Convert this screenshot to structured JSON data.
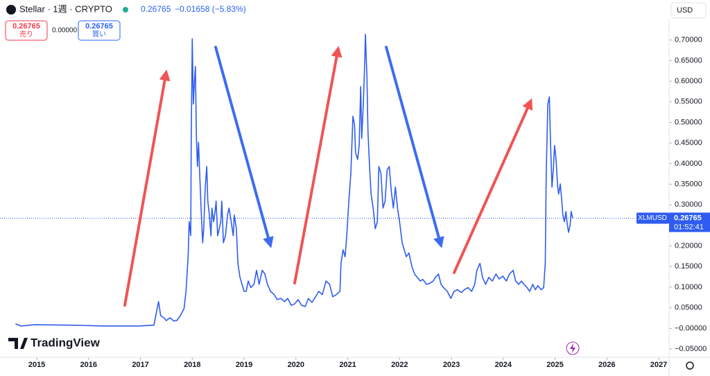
{
  "header": {
    "symbol": "Stellar · 1週 · CRYPTO",
    "change": "−0.01658 (−5.83%)",
    "sell_label": "売り",
    "spread": "0.00000",
    "buy_label": "買い",
    "currency": "USD",
    "ticker": "XLMUSD",
    "countdown": "01:52:41",
    "brand": "TradingView"
  },
  "chart_data": {
    "type": "line",
    "color": "#2e5cf0",
    "grid": false,
    "last_price": 0.26765,
    "xlim": [
      2014.29,
      2027.2
    ],
    "xticks": [
      2015,
      2016,
      2017,
      2018,
      2019,
      2020,
      2021,
      2022,
      2023,
      2024,
      2025,
      2026,
      2027
    ],
    "ylim": [
      -0.07,
      0.75
    ],
    "yticks": [
      {
        "value": -0.05,
        "label": "−0.05000"
      },
      {
        "value": 0,
        "label": "−0.00000"
      },
      {
        "value": 0.05,
        "label": "0.05000"
      },
      {
        "value": 0.1,
        "label": "0.10000"
      },
      {
        "value": 0.15,
        "label": "0.15000"
      },
      {
        "value": 0.2,
        "label": "0.20000"
      },
      {
        "value": 0.25,
        "label": "0.25000"
      },
      {
        "value": 0.3,
        "label": "0.30000"
      },
      {
        "value": 0.35,
        "label": "0.35000"
      },
      {
        "value": 0.4,
        "label": "0.40000"
      },
      {
        "value": 0.45,
        "label": "0.45000"
      },
      {
        "value": 0.5,
        "label": "0.50000"
      },
      {
        "value": 0.55,
        "label": "0.55000"
      },
      {
        "value": 0.6,
        "label": "0.60000"
      },
      {
        "value": 0.65,
        "label": "0.65000"
      },
      {
        "value": 0.7,
        "label": "0.70000"
      }
    ],
    "x": [
      2014.59,
      2014.69,
      2014.96,
      2015.63,
      2016.3,
      2016.97,
      2017.26,
      2017.31,
      2017.35,
      2017.39,
      2017.45,
      2017.5,
      2017.57,
      2017.64,
      2017.7,
      2017.77,
      2017.84,
      2017.88,
      2017.92,
      2017.94,
      2017.97,
      2017.98,
      2018.0,
      2018.02,
      2018.04,
      2018.06,
      2018.08,
      2018.1,
      2018.12,
      2018.14,
      2018.17,
      2018.2,
      2018.22,
      2018.25,
      2018.28,
      2018.3,
      2018.33,
      2018.36,
      2018.38,
      2018.41,
      2018.44,
      2018.46,
      2018.49,
      2018.52,
      2018.55,
      2018.57,
      2018.6,
      2018.64,
      2018.68,
      2018.71,
      2018.75,
      2018.79,
      2018.81,
      2018.85,
      2018.88,
      2018.92,
      2018.96,
      2019.0,
      2019.04,
      2019.08,
      2019.13,
      2019.19,
      2019.24,
      2019.29,
      2019.35,
      2019.4,
      2019.45,
      2019.51,
      2019.58,
      2019.64,
      2019.71,
      2019.78,
      2019.84,
      2019.91,
      2019.98,
      2020.04,
      2020.11,
      2020.18,
      2020.24,
      2020.31,
      2020.38,
      2020.44,
      2020.51,
      2020.58,
      2020.65,
      2020.71,
      2020.78,
      2020.85,
      2020.87,
      2020.91,
      2020.95,
      2020.98,
      2021.02,
      2021.06,
      2021.1,
      2021.13,
      2021.15,
      2021.19,
      2021.22,
      2021.25,
      2021.27,
      2021.3,
      2021.33,
      2021.34,
      2021.37,
      2021.39,
      2021.42,
      2021.45,
      2021.49,
      2021.53,
      2021.57,
      2021.6,
      2021.64,
      2021.68,
      2021.72,
      2021.76,
      2021.8,
      2021.84,
      2021.88,
      2021.92,
      2021.96,
      2022.0,
      2022.05,
      2022.09,
      2022.13,
      2022.18,
      2022.24,
      2022.29,
      2022.34,
      2022.4,
      2022.45,
      2022.52,
      2022.59,
      2022.65,
      2022.69,
      2022.75,
      2022.8,
      2022.85,
      2022.92,
      2022.99,
      2023.05,
      2023.12,
      2023.19,
      2023.25,
      2023.32,
      2023.39,
      2023.45,
      2023.49,
      2023.55,
      2023.6,
      2023.66,
      2023.72,
      2023.79,
      2023.86,
      2023.92,
      2023.99,
      2024.06,
      2024.12,
      2024.19,
      2024.24,
      2024.3,
      2024.35,
      2024.4,
      2024.46,
      2024.51,
      2024.57,
      2024.62,
      2024.67,
      2024.73,
      2024.78,
      2024.81,
      2024.83,
      2024.86,
      2024.89,
      2024.91,
      2024.94,
      2024.97,
      2024.99,
      2025.02,
      2025.05,
      2025.07,
      2025.1,
      2025.13,
      2025.15,
      2025.18,
      2025.21,
      2025.23,
      2025.26,
      2025.29,
      2025.31,
      2025.34
    ],
    "values": [
      0.011,
      0.006,
      0.009,
      0.008,
      0.006,
      0.006,
      0.008,
      0.04,
      0.065,
      0.031,
      0.026,
      0.019,
      0.026,
      0.018,
      0.019,
      0.031,
      0.048,
      0.09,
      0.174,
      0.259,
      0.225,
      0.461,
      0.703,
      0.545,
      0.596,
      0.636,
      0.461,
      0.393,
      0.452,
      0.385,
      0.292,
      0.208,
      0.242,
      0.343,
      0.393,
      0.309,
      0.275,
      0.225,
      0.292,
      0.259,
      0.284,
      0.309,
      0.225,
      0.242,
      0.259,
      0.309,
      0.208,
      0.225,
      0.275,
      0.292,
      0.259,
      0.225,
      0.275,
      0.242,
      0.158,
      0.124,
      0.107,
      0.09,
      0.09,
      0.115,
      0.099,
      0.107,
      0.141,
      0.107,
      0.141,
      0.132,
      0.107,
      0.09,
      0.082,
      0.07,
      0.073,
      0.065,
      0.073,
      0.056,
      0.06,
      0.07,
      0.056,
      0.053,
      0.073,
      0.063,
      0.077,
      0.09,
      0.082,
      0.115,
      0.107,
      0.077,
      0.082,
      0.09,
      0.158,
      0.191,
      0.174,
      0.225,
      0.309,
      0.376,
      0.515,
      0.494,
      0.427,
      0.41,
      0.444,
      0.587,
      0.461,
      0.545,
      0.655,
      0.714,
      0.612,
      0.478,
      0.393,
      0.326,
      0.292,
      0.242,
      0.259,
      0.393,
      0.376,
      0.292,
      0.309,
      0.385,
      0.393,
      0.334,
      0.292,
      0.343,
      0.292,
      0.259,
      0.208,
      0.191,
      0.174,
      0.183,
      0.149,
      0.132,
      0.124,
      0.115,
      0.119,
      0.107,
      0.11,
      0.115,
      0.124,
      0.132,
      0.107,
      0.099,
      0.09,
      0.073,
      0.09,
      0.094,
      0.087,
      0.094,
      0.099,
      0.09,
      0.107,
      0.141,
      0.158,
      0.124,
      0.107,
      0.124,
      0.115,
      0.132,
      0.12,
      0.127,
      0.115,
      0.132,
      0.141,
      0.115,
      0.107,
      0.115,
      0.107,
      0.099,
      0.09,
      0.107,
      0.094,
      0.104,
      0.094,
      0.099,
      0.158,
      0.376,
      0.545,
      0.562,
      0.461,
      0.343,
      0.393,
      0.444,
      0.41,
      0.343,
      0.326,
      0.351,
      0.309,
      0.275,
      0.259,
      0.284,
      0.259,
      0.233,
      0.25,
      0.284,
      0.26765
    ]
  }
}
